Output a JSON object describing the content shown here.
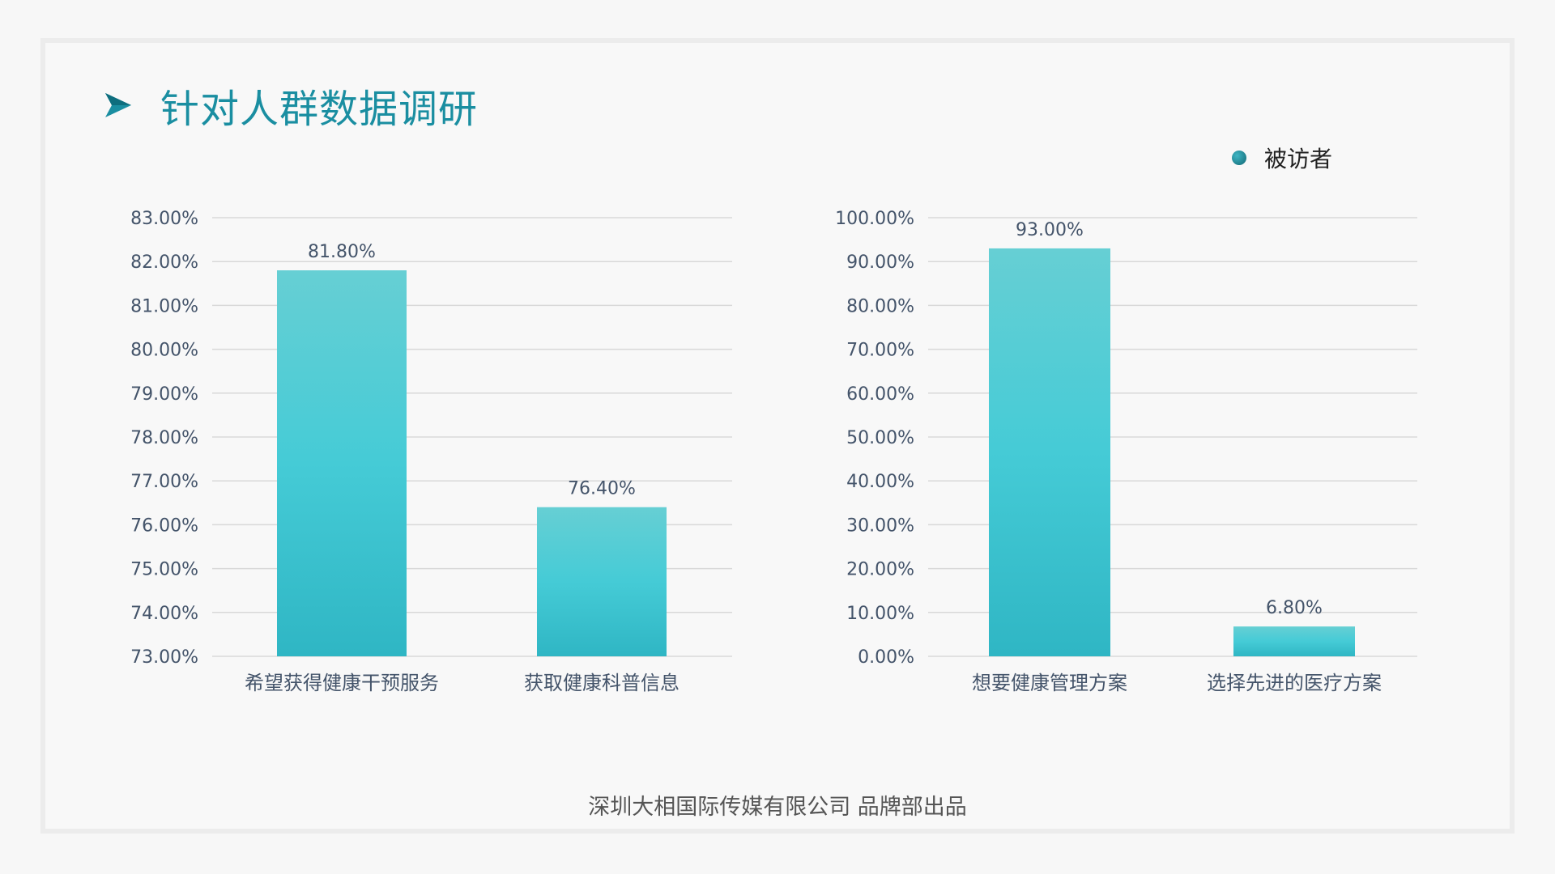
{
  "slide": {
    "title": "针对人群数据调研",
    "legend_label": "被访者",
    "footer": "深圳大相国际传媒有限公司 品牌部出品"
  },
  "colors": {
    "title": "#1a8ea1",
    "bar_top": "#66cfd4",
    "bar_mid": "#45cbd6",
    "bar_bottom": "#2fb6c4",
    "grid": "#d9d9d9",
    "text": "#44546a"
  },
  "chart_data": [
    {
      "type": "bar",
      "categories": [
        "希望获得健康干预服务",
        "获取健康科普信息"
      ],
      "series": [
        {
          "name": "被访者",
          "values": [
            81.8,
            76.4
          ]
        }
      ],
      "data_labels": [
        "81.80%",
        "76.40%"
      ],
      "ylim": [
        73,
        83
      ],
      "yticks": [
        73,
        74,
        75,
        76,
        77,
        78,
        79,
        80,
        81,
        82,
        83
      ],
      "ytick_labels": [
        "73.00%",
        "74.00%",
        "75.00%",
        "76.00%",
        "77.00%",
        "78.00%",
        "79.00%",
        "80.00%",
        "81.00%",
        "82.00%",
        "83.00%"
      ],
      "grid": true
    },
    {
      "type": "bar",
      "categories": [
        "想要健康管理方案",
        "选择先进的医疗方案"
      ],
      "series": [
        {
          "name": "被访者",
          "values": [
            93.0,
            6.8
          ]
        }
      ],
      "data_labels": [
        "93.00%",
        "6.80%"
      ],
      "ylim": [
        0,
        100
      ],
      "yticks": [
        0,
        10,
        20,
        30,
        40,
        50,
        60,
        70,
        80,
        90,
        100
      ],
      "ytick_labels": [
        "0.00%",
        "10.00%",
        "20.00%",
        "30.00%",
        "40.00%",
        "50.00%",
        "60.00%",
        "70.00%",
        "80.00%",
        "90.00%",
        "100.00%"
      ],
      "grid": true,
      "legend": "top-right"
    }
  ]
}
